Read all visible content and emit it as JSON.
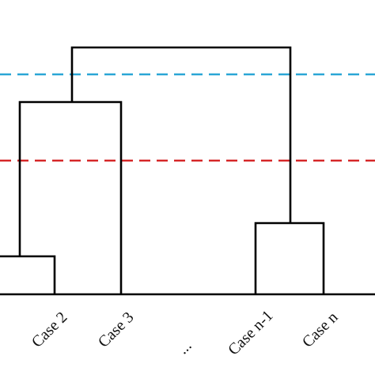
{
  "diagram": {
    "type": "dendrogram",
    "labels": {
      "case_2": "Case 2",
      "case_3": "Case 3",
      "ellipsis": "...",
      "case_n_minus_1": "Case n-1",
      "case_n": "Case n"
    },
    "colors": {
      "tree": "#000000",
      "cut_line_upper": "#2aa6d6",
      "cut_line_lower": "#d62728",
      "label_text": "#111111"
    }
  }
}
